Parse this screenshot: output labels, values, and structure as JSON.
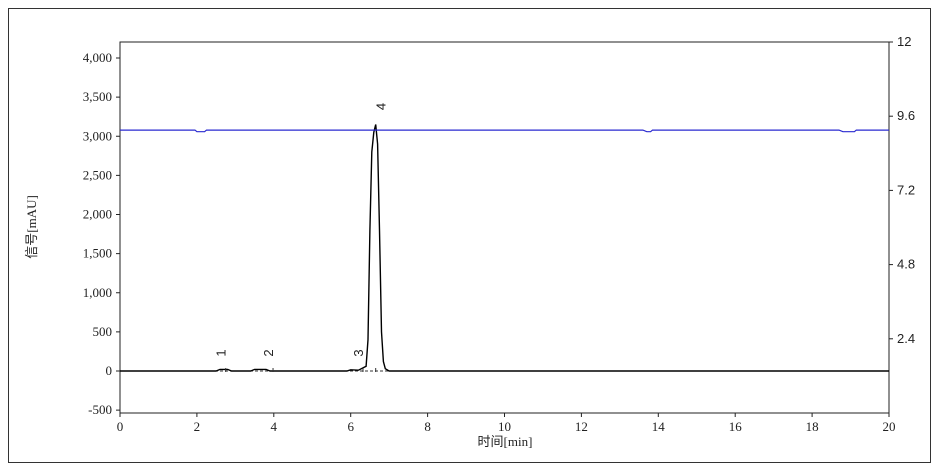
{
  "chart_data": {
    "type": "line",
    "xlabel": "时间[min]",
    "ylabel": "信号[mAU]",
    "xlim": [
      0,
      20
    ],
    "ylim": [
      -500,
      4200
    ],
    "y2lim": [
      0,
      12
    ],
    "xticks": [
      0,
      2,
      4,
      6,
      8,
      10,
      12,
      14,
      16,
      18,
      20
    ],
    "yticks": [
      -500,
      0,
      500,
      1000,
      1500,
      2000,
      2500,
      3000,
      3500,
      4000
    ],
    "ytick_labels": [
      "-500",
      "0",
      "500",
      "1,000",
      "1,500",
      "2,000",
      "2,500",
      "3,000",
      "3,500",
      "4,000"
    ],
    "y2ticks": [
      2.4,
      4.8,
      7.2,
      9.6,
      12
    ],
    "y2tick_labels": [
      "2.4",
      "4.8",
      "7.2",
      "9.6",
      "12"
    ],
    "grid": false,
    "series": [
      {
        "color": "#000000",
        "axis": "left",
        "x": [
          0,
          2.0,
          2.5,
          2.6,
          2.8,
          2.9,
          3.4,
          3.5,
          3.6,
          3.8,
          3.9,
          5.9,
          6.0,
          6.2,
          6.4,
          6.45,
          6.5,
          6.55,
          6.6,
          6.65,
          6.7,
          6.75,
          6.8,
          6.85,
          6.9,
          7.0,
          8.5,
          20
        ],
        "y": [
          0,
          0,
          0,
          20,
          20,
          0,
          0,
          20,
          20,
          20,
          0,
          0,
          15,
          10,
          60,
          400,
          1800,
          2800,
          3050,
          3150,
          2900,
          1800,
          500,
          120,
          30,
          0,
          0,
          0
        ]
      },
      {
        "color": "#2a2ad0",
        "axis": "right",
        "x": [
          0,
          1.95,
          2.0,
          2.2,
          2.25,
          13.6,
          13.7,
          13.8,
          13.85,
          18.7,
          18.8,
          19.1,
          19.15,
          20
        ],
        "y": [
          9.15,
          9.15,
          9.1,
          9.1,
          9.15,
          9.15,
          9.1,
          9.1,
          9.15,
          9.15,
          9.1,
          9.1,
          9.15,
          9.15
        ]
      }
    ],
    "peaks": [
      {
        "label": "1",
        "x": 2.75
      },
      {
        "label": "2",
        "x": 3.98
      },
      {
        "label": "3",
        "x": 6.32
      },
      {
        "label": "4",
        "x": 6.65,
        "y": 3150
      }
    ]
  }
}
